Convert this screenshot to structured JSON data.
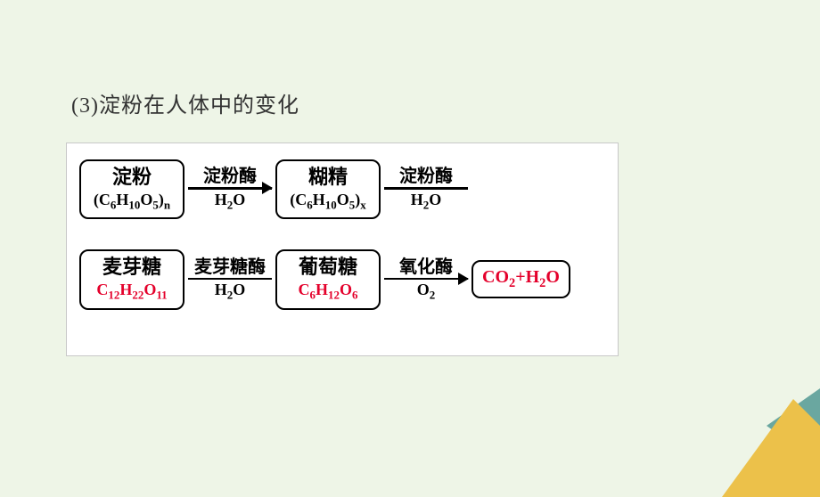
{
  "heading": "(3)淀粉在人体中的变化",
  "diagram": {
    "bg": "#ffffff",
    "border": "#c8c8c8",
    "highlight_color": "#e4002b",
    "rows": [
      {
        "cells": [
          {
            "kind": "node",
            "cn": "淀粉",
            "formula_html": "(C<sub>6</sub>H<sub>10</sub>O<sub>5</sub>)<sub>n</sub>",
            "formula_red": false
          },
          {
            "kind": "arrow",
            "top": "淀粉酶",
            "bottom_html": "H<sub>2</sub>O",
            "head": true
          },
          {
            "kind": "node",
            "cn": "糊精",
            "formula_html": "(C<sub>6</sub>H<sub>10</sub>O<sub>5</sub>)<sub>x</sub>",
            "formula_red": false
          },
          {
            "kind": "arrow",
            "top": "淀粉酶",
            "bottom_html": "H<sub>2</sub>O",
            "head": false
          }
        ]
      },
      {
        "cells": [
          {
            "kind": "node",
            "cn": "麦芽糖",
            "formula_html": "C<sub>12</sub>H<sub>22</sub>O<sub>11</sub>",
            "formula_red": true
          },
          {
            "kind": "arrow",
            "top": "麦芽糖酶",
            "bottom_html": "H<sub>2</sub>O",
            "head": false
          },
          {
            "kind": "node",
            "cn": "葡萄糖",
            "formula_html": "C<sub>6</sub>H<sub>12</sub>O<sub>6</sub>",
            "formula_red": true
          },
          {
            "kind": "arrow",
            "top": "氧化酶",
            "bottom_html": "O<sub>2</sub>",
            "head": true
          },
          {
            "kind": "product",
            "formula_html": "CO<sub>2</sub>+H<sub>2</sub>O"
          }
        ]
      }
    ]
  },
  "corner_colors": {
    "a": "#6aa7a0",
    "b": "#ecc14a",
    "c": "#e9e9e9"
  }
}
